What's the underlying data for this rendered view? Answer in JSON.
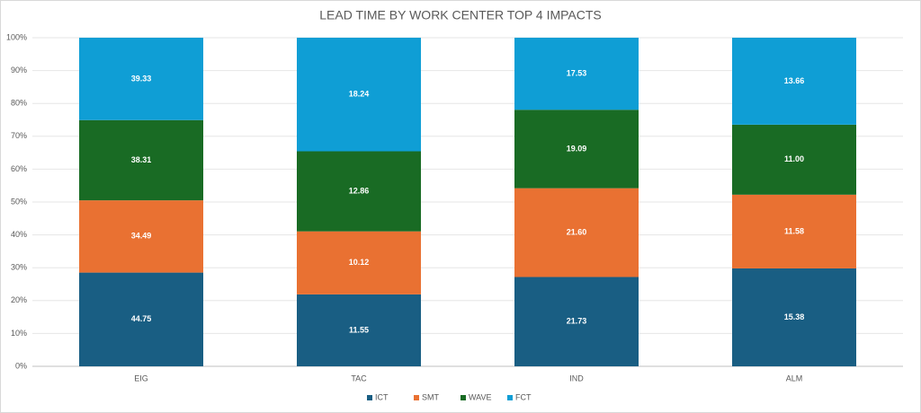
{
  "chart_data": {
    "type": "bar",
    "stacking": "percent",
    "title": "LEAD TIME BY WORK CENTER TOP 4 IMPACTS",
    "categories": [
      "EIG",
      "TAC",
      "IND",
      "ALM"
    ],
    "series": [
      {
        "name": "ICT",
        "color": "#195e83",
        "values": [
          44.75,
          11.55,
          21.73,
          15.38
        ],
        "value_labels": [
          "44.75",
          "11.55",
          "21.73",
          "15.38"
        ]
      },
      {
        "name": "SMT",
        "color": "#e97132",
        "values": [
          34.49,
          10.12,
          21.6,
          11.58
        ],
        "value_labels": [
          "34.49",
          "10.12",
          "21.60",
          "11.58"
        ]
      },
      {
        "name": "WAVE",
        "color": "#196b24",
        "values": [
          38.31,
          12.86,
          19.09,
          11.0
        ],
        "value_labels": [
          "38.31",
          "12.86",
          "19.09",
          "11.00"
        ]
      },
      {
        "name": "FCT",
        "color": "#0f9ed5",
        "values": [
          39.33,
          18.24,
          17.53,
          13.66
        ],
        "value_labels": [
          "39.33",
          "18.24",
          "17.53",
          "13.66"
        ]
      }
    ],
    "ylim": [
      0,
      100
    ],
    "yticks": [
      {
        "value": 0,
        "label": "0%"
      },
      {
        "value": 10,
        "label": "10%"
      },
      {
        "value": 20,
        "label": "20%"
      },
      {
        "value": 30,
        "label": "30%"
      },
      {
        "value": 40,
        "label": "40%"
      },
      {
        "value": 50,
        "label": "50%"
      },
      {
        "value": 60,
        "label": "60%"
      },
      {
        "value": 70,
        "label": "70%"
      },
      {
        "value": 80,
        "label": "80%"
      },
      {
        "value": 90,
        "label": "90%"
      },
      {
        "value": 100,
        "label": "100%"
      }
    ],
    "grid": true,
    "legend": "bottom"
  }
}
